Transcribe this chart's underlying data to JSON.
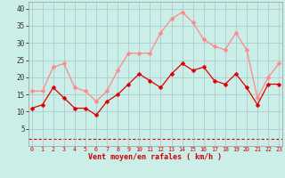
{
  "x": [
    0,
    1,
    2,
    3,
    4,
    5,
    6,
    7,
    8,
    9,
    10,
    11,
    12,
    13,
    14,
    15,
    16,
    17,
    18,
    19,
    20,
    21,
    22,
    23
  ],
  "vent_moyen": [
    11,
    12,
    17,
    14,
    11,
    11,
    9,
    13,
    15,
    18,
    21,
    19,
    17,
    21,
    24,
    22,
    23,
    19,
    18,
    21,
    17,
    12,
    18,
    18
  ],
  "vent_rafales": [
    16,
    16,
    23,
    24,
    17,
    16,
    13,
    16,
    22,
    27,
    27,
    27,
    33,
    37,
    39,
    36,
    31,
    29,
    28,
    33,
    28,
    14,
    20,
    24
  ],
  "dashed_line_y": 2,
  "bg_color": "#cceee8",
  "grid_color": "#aacccc",
  "line_color_moyen": "#dd0000",
  "line_color_rafales": "#ff8888",
  "dashed_color": "#dd0000",
  "ylabel_ticks": [
    5,
    10,
    15,
    20,
    25,
    30,
    35,
    40
  ],
  "ylim": [
    0,
    42
  ],
  "xlim": [
    -0.3,
    23.3
  ],
  "xlabel": "Vent moyen/en rafales ( km/h )",
  "xlabel_color": "#cc0000",
  "marker": "D",
  "marker_size": 2.5,
  "linewidth": 0.9
}
